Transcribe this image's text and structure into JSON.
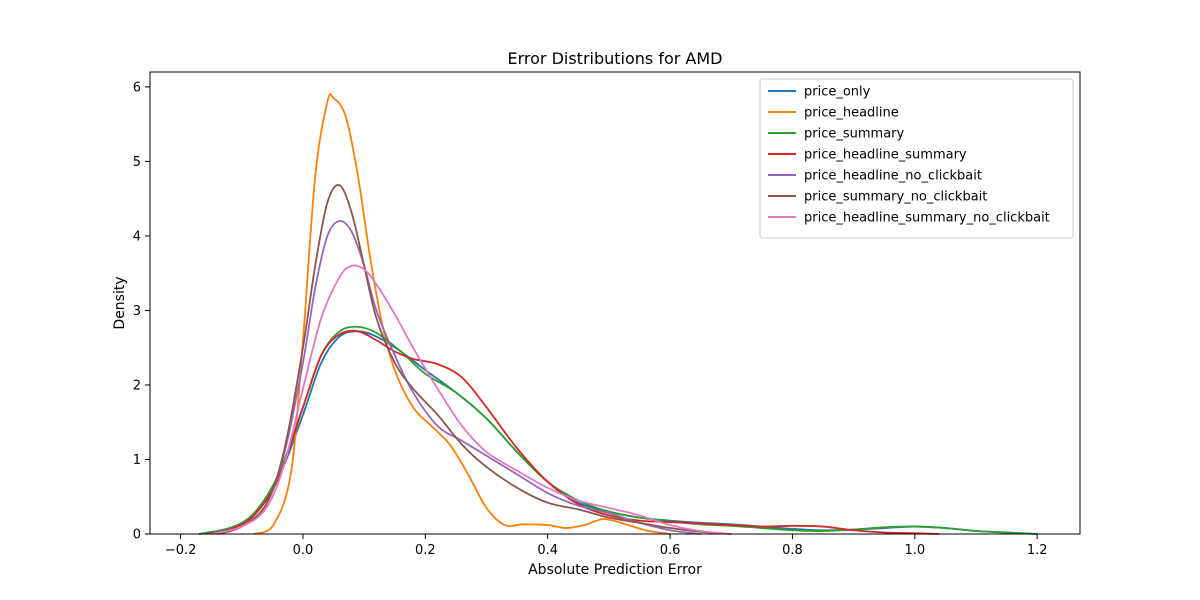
{
  "chart_data": {
    "type": "line",
    "title": "Error Distributions for AMD",
    "xlabel": "Absolute Prediction Error",
    "ylabel": "Density",
    "xlim": [
      -0.25,
      1.27
    ],
    "ylim": [
      0,
      6.2
    ],
    "xticks": [
      -0.2,
      0.0,
      0.2,
      0.4,
      0.6,
      0.8,
      1.0,
      1.2
    ],
    "xtick_labels": [
      "−0.2",
      "0.0",
      "0.2",
      "0.4",
      "0.6",
      "0.8",
      "1.0",
      "1.2"
    ],
    "yticks": [
      0,
      1,
      2,
      3,
      4,
      5,
      6
    ],
    "ytick_labels": [
      "0",
      "1",
      "2",
      "3",
      "4",
      "5",
      "6"
    ],
    "grid": false,
    "legend_position": "top-right",
    "series": [
      {
        "name": "price_only",
        "color": "#1f77b4",
        "x": [
          -0.17,
          -0.12,
          -0.08,
          -0.04,
          0.0,
          0.03,
          0.06,
          0.09,
          0.12,
          0.16,
          0.2,
          0.25,
          0.3,
          0.35,
          0.4,
          0.45,
          0.5,
          0.55,
          0.6,
          0.65,
          0.7,
          0.75,
          0.8,
          0.85,
          0.9,
          0.95,
          1.0,
          1.05,
          1.1,
          1.15,
          1.2
        ],
        "y": [
          0.0,
          0.08,
          0.25,
          0.75,
          1.6,
          2.3,
          2.65,
          2.72,
          2.65,
          2.45,
          2.2,
          1.9,
          1.55,
          1.1,
          0.7,
          0.42,
          0.3,
          0.22,
          0.18,
          0.15,
          0.13,
          0.1,
          0.07,
          0.05,
          0.06,
          0.08,
          0.1,
          0.08,
          0.04,
          0.02,
          0.0
        ]
      },
      {
        "name": "price_headline",
        "color": "#ff7f0e",
        "x": [
          -0.08,
          -0.05,
          -0.02,
          0.0,
          0.02,
          0.04,
          0.05,
          0.07,
          0.09,
          0.11,
          0.13,
          0.15,
          0.18,
          0.21,
          0.24,
          0.27,
          0.3,
          0.33,
          0.36,
          0.4,
          0.43,
          0.46,
          0.49,
          0.52,
          0.56,
          0.6
        ],
        "y": [
          0.0,
          0.1,
          0.8,
          2.6,
          4.8,
          5.8,
          5.85,
          5.6,
          4.8,
          3.7,
          2.8,
          2.2,
          1.7,
          1.45,
          1.2,
          0.8,
          0.35,
          0.12,
          0.13,
          0.12,
          0.08,
          0.12,
          0.2,
          0.15,
          0.05,
          0.0
        ]
      },
      {
        "name": "price_summary",
        "color": "#2ca02c",
        "x": [
          -0.17,
          -0.12,
          -0.08,
          -0.04,
          0.0,
          0.03,
          0.06,
          0.09,
          0.12,
          0.16,
          0.2,
          0.25,
          0.3,
          0.35,
          0.4,
          0.45,
          0.5,
          0.55,
          0.6,
          0.65,
          0.7,
          0.75,
          0.8,
          0.85,
          0.9,
          0.95,
          1.0,
          1.05,
          1.1,
          1.15,
          1.2
        ],
        "y": [
          0.0,
          0.08,
          0.28,
          0.8,
          1.7,
          2.4,
          2.72,
          2.78,
          2.7,
          2.45,
          2.15,
          1.9,
          1.55,
          1.1,
          0.7,
          0.45,
          0.3,
          0.22,
          0.17,
          0.13,
          0.11,
          0.08,
          0.05,
          0.04,
          0.06,
          0.09,
          0.1,
          0.08,
          0.04,
          0.02,
          0.0
        ]
      },
      {
        "name": "price_headline_summary",
        "color": "#d62728",
        "x": [
          -0.16,
          -0.12,
          -0.08,
          -0.04,
          0.0,
          0.03,
          0.06,
          0.09,
          0.12,
          0.15,
          0.18,
          0.22,
          0.26,
          0.3,
          0.35,
          0.4,
          0.45,
          0.5,
          0.55,
          0.6,
          0.65,
          0.7,
          0.75,
          0.8,
          0.85,
          0.9,
          0.95,
          1.0,
          1.04
        ],
        "y": [
          0.0,
          0.06,
          0.25,
          0.75,
          1.7,
          2.4,
          2.68,
          2.72,
          2.6,
          2.45,
          2.35,
          2.28,
          2.1,
          1.7,
          1.15,
          0.7,
          0.4,
          0.25,
          0.18,
          0.16,
          0.14,
          0.12,
          0.1,
          0.11,
          0.1,
          0.05,
          0.02,
          0.01,
          0.0
        ]
      },
      {
        "name": "price_headline_no_clickbait",
        "color": "#9467bd",
        "x": [
          -0.14,
          -0.1,
          -0.06,
          -0.03,
          0.0,
          0.02,
          0.04,
          0.06,
          0.08,
          0.1,
          0.12,
          0.15,
          0.18,
          0.22,
          0.26,
          0.3,
          0.35,
          0.4,
          0.45,
          0.5,
          0.55,
          0.6,
          0.65
        ],
        "y": [
          0.0,
          0.1,
          0.4,
          1.1,
          2.3,
          3.3,
          4.0,
          4.2,
          4.05,
          3.6,
          3.0,
          2.4,
          1.9,
          1.45,
          1.25,
          1.05,
          0.8,
          0.55,
          0.38,
          0.28,
          0.15,
          0.05,
          0.0
        ]
      },
      {
        "name": "price_summary_no_clickbait",
        "color": "#8c564b",
        "x": [
          -0.14,
          -0.1,
          -0.06,
          -0.03,
          0.0,
          0.02,
          0.04,
          0.06,
          0.08,
          0.1,
          0.12,
          0.15,
          0.18,
          0.22,
          0.26,
          0.3,
          0.35,
          0.4,
          0.45,
          0.5,
          0.55,
          0.6,
          0.65,
          0.7
        ],
        "y": [
          0.0,
          0.1,
          0.4,
          1.15,
          2.5,
          3.6,
          4.45,
          4.68,
          4.3,
          3.6,
          2.9,
          2.3,
          1.95,
          1.6,
          1.2,
          0.9,
          0.62,
          0.42,
          0.33,
          0.22,
          0.15,
          0.08,
          0.03,
          0.0
        ]
      },
      {
        "name": "price_headline_summary_no_clickbait",
        "color": "#e377c2",
        "x": [
          -0.15,
          -0.1,
          -0.06,
          -0.03,
          0.0,
          0.03,
          0.06,
          0.08,
          0.1,
          0.12,
          0.15,
          0.18,
          0.22,
          0.26,
          0.3,
          0.35,
          0.4,
          0.45,
          0.5,
          0.55,
          0.6,
          0.65,
          0.7
        ],
        "y": [
          0.0,
          0.1,
          0.35,
          0.95,
          1.95,
          2.9,
          3.45,
          3.6,
          3.55,
          3.35,
          2.95,
          2.5,
          1.95,
          1.45,
          1.1,
          0.85,
          0.62,
          0.45,
          0.35,
          0.25,
          0.12,
          0.04,
          0.0
        ]
      }
    ]
  }
}
